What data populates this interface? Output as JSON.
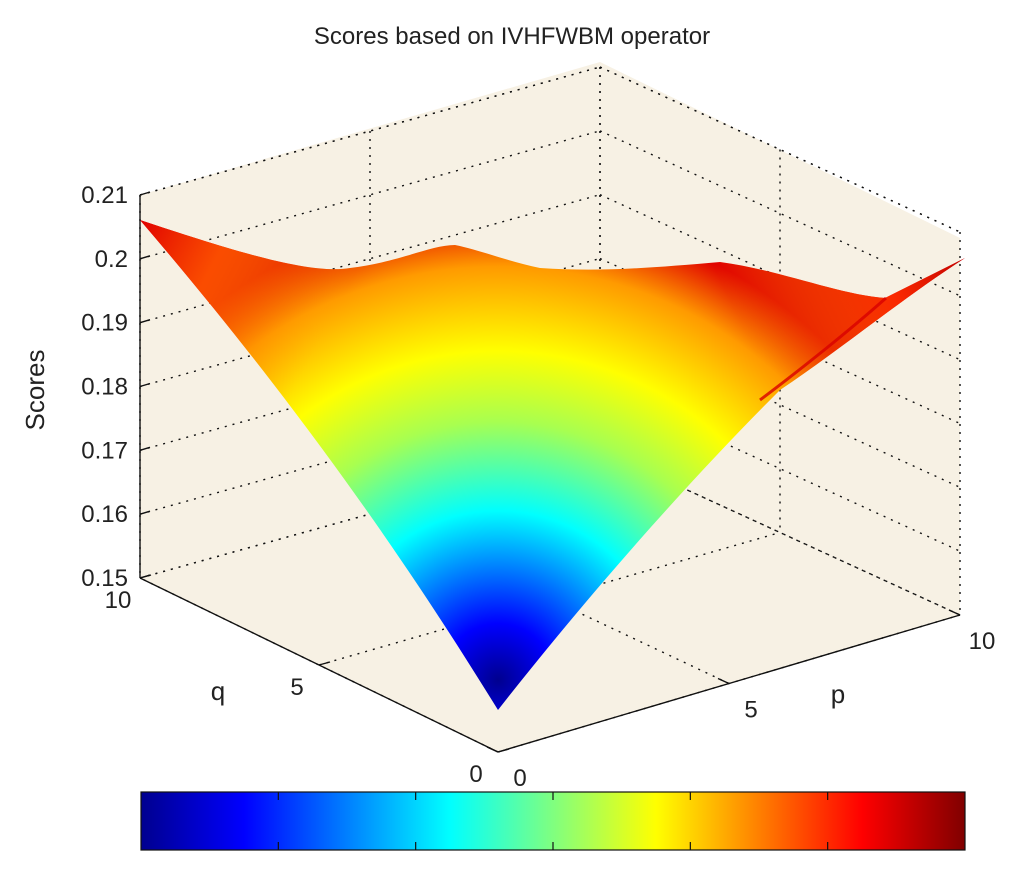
{
  "chart_data": {
    "type": "surface",
    "title": "Scores based on IVHFWBM operator",
    "xlabel": "p",
    "ylabel": "q",
    "zlabel": "Scores",
    "x_ticks": [
      "0",
      "5",
      "10"
    ],
    "y_ticks": [
      "0",
      "5",
      "10"
    ],
    "z_ticks": [
      "0.15",
      "0.16",
      "0.17",
      "0.18",
      "0.19",
      "0.2",
      "0.21"
    ],
    "xlim": [
      0,
      10
    ],
    "ylim": [
      0,
      10
    ],
    "zlim": [
      0.15,
      0.21
    ],
    "grid": true,
    "colormap": "jet",
    "colorbar": "horizontal-bottom",
    "surface_samples": {
      "p": [
        0,
        5,
        10,
        0,
        5,
        10,
        0,
        5,
        10
      ],
      "q": [
        0,
        0,
        0,
        5,
        5,
        5,
        10,
        10,
        10
      ],
      "score": [
        0.15,
        0.197,
        0.201,
        0.197,
        0.199,
        0.2,
        0.204,
        0.201,
        0.199
      ]
    }
  },
  "colors": {
    "pane": "#f7f1e4",
    "colorbar_ticks": "#111111"
  }
}
